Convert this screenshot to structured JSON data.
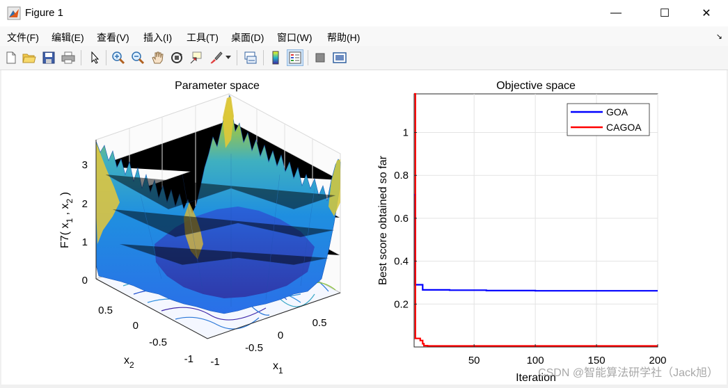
{
  "window": {
    "title": "Figure 1",
    "minimize": "—",
    "maximize": "☐",
    "close": "✕"
  },
  "menu": [
    "文件(F)",
    "编辑(E)",
    "查看(V)",
    "插入(I)",
    "工具(T)",
    "桌面(D)",
    "窗口(W)",
    "帮助(H)"
  ],
  "toolbar_icons": [
    "new-figure-icon",
    "open-file-icon",
    "save-icon",
    "print-icon",
    "pointer-icon",
    "zoom-in-icon",
    "zoom-out-icon",
    "pan-icon",
    "rotate-3d-icon",
    "data-cursor-icon",
    "brush-icon",
    "link-plot-icon",
    "colorbar-icon",
    "legend-icon",
    "hide-plot-tools-icon",
    "show-plot-tools-icon"
  ],
  "watermark": "CSDN @智能算法研学社（Jack旭）",
  "chart_data": [
    {
      "type": "surface",
      "title": "Parameter space",
      "xlabel": "x",
      "xlabel_sub": "1",
      "ylabel": "x",
      "ylabel_sub": "2",
      "zlabel_parts": [
        "F7( x",
        "1",
        " , x",
        "2",
        " )"
      ],
      "x_ticks": [
        "-1",
        "-0.5",
        "0",
        "0.5"
      ],
      "y_ticks": [
        "0.5",
        "0",
        "-0.5",
        "-1"
      ],
      "z_ticks": [
        "0",
        "1",
        "2",
        "3"
      ],
      "zlim": [
        0,
        3.6
      ],
      "colormap": "parula"
    },
    {
      "type": "line",
      "title": "Objective space",
      "xlabel": "Iteration",
      "ylabel": "Best score obtained so far",
      "xlim": [
        1,
        200
      ],
      "ylim": [
        0.0,
        1.18
      ],
      "x_ticks": [
        50,
        100,
        150,
        200
      ],
      "y_ticks": [
        0.2,
        0.4,
        0.6,
        0.8,
        1
      ],
      "grid": true,
      "legend_position": "top-right",
      "series": [
        {
          "name": "GOA",
          "color": "#0000ff",
          "x": [
            1,
            2,
            3,
            7,
            8,
            10,
            30,
            60,
            100,
            200
          ],
          "y": [
            0.71,
            0.29,
            0.29,
            0.29,
            0.266,
            0.266,
            0.265,
            0.263,
            0.262,
            0.262
          ]
        },
        {
          "name": "CAGOA",
          "color": "#ff0000",
          "x": [
            1,
            2,
            3,
            6,
            8,
            9,
            12,
            50,
            100,
            200
          ],
          "y": [
            1.18,
            0.04,
            0.04,
            0.03,
            0.015,
            0.006,
            0.005,
            0.005,
            0.005,
            0.005
          ]
        }
      ]
    }
  ]
}
